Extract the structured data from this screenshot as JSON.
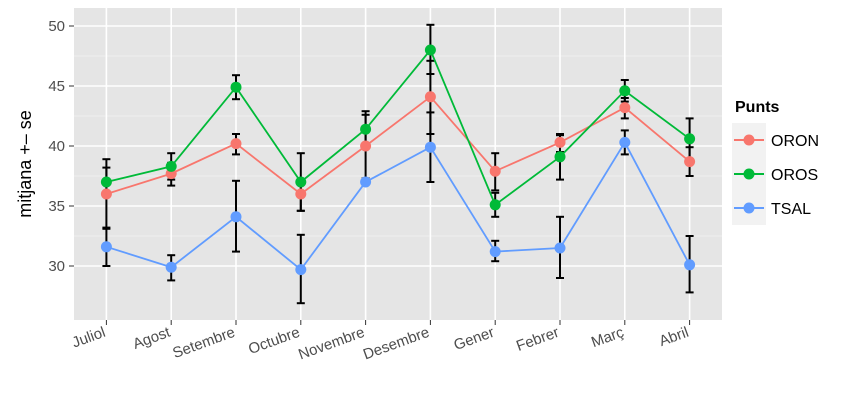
{
  "chart_data": {
    "type": "line",
    "ylabel": "mitjana +– se",
    "xlabel": "",
    "ylim": [
      25.5,
      51.5
    ],
    "yticks": [
      30,
      35,
      40,
      45,
      50
    ],
    "grid": true,
    "legend": {
      "title": "Punts",
      "position": "right"
    },
    "panel_background": "#e5e5e5",
    "categories": [
      "Juliol",
      "Agost",
      "Setembre",
      "Octubre",
      "Novembre",
      "Desembre",
      "Gener",
      "Febrer",
      "Març",
      "Abril"
    ],
    "series": [
      {
        "name": "ORON",
        "color": "#f8766d",
        "values": [
          36.0,
          37.7,
          40.2,
          36.0,
          40.0,
          44.1,
          37.9,
          40.3,
          43.2,
          38.7
        ],
        "err_low": [
          33.1,
          36.7,
          39.3,
          34.6,
          37.3,
          41.0,
          36.3,
          39.5,
          42.3,
          37.5
        ],
        "err_high": [
          38.9,
          38.6,
          41.0,
          37.0,
          42.6,
          47.1,
          39.4,
          41.0,
          44.0,
          39.9
        ]
      },
      {
        "name": "OROS",
        "color": "#00ba38",
        "values": [
          37.0,
          38.3,
          44.9,
          37.0,
          41.4,
          48.0,
          35.1,
          39.1,
          44.6,
          40.6
        ],
        "err_low": [
          35.8,
          37.2,
          43.9,
          34.6,
          39.9,
          46.0,
          34.1,
          37.2,
          43.7,
          38.9
        ],
        "err_high": [
          38.2,
          39.4,
          45.9,
          39.4,
          42.9,
          50.1,
          36.1,
          40.9,
          45.5,
          42.3
        ]
      },
      {
        "name": "TSAL",
        "color": "#619cff",
        "values": [
          31.6,
          29.9,
          34.1,
          29.7,
          37.0,
          39.9,
          31.2,
          31.5,
          40.3,
          30.1
        ],
        "err_low": [
          30.0,
          28.8,
          31.2,
          26.9,
          36.9,
          37.0,
          30.4,
          29.0,
          39.3,
          27.8
        ],
        "err_high": [
          33.2,
          30.9,
          37.1,
          32.6,
          37.1,
          42.8,
          32.1,
          34.1,
          41.3,
          32.5
        ]
      }
    ]
  }
}
